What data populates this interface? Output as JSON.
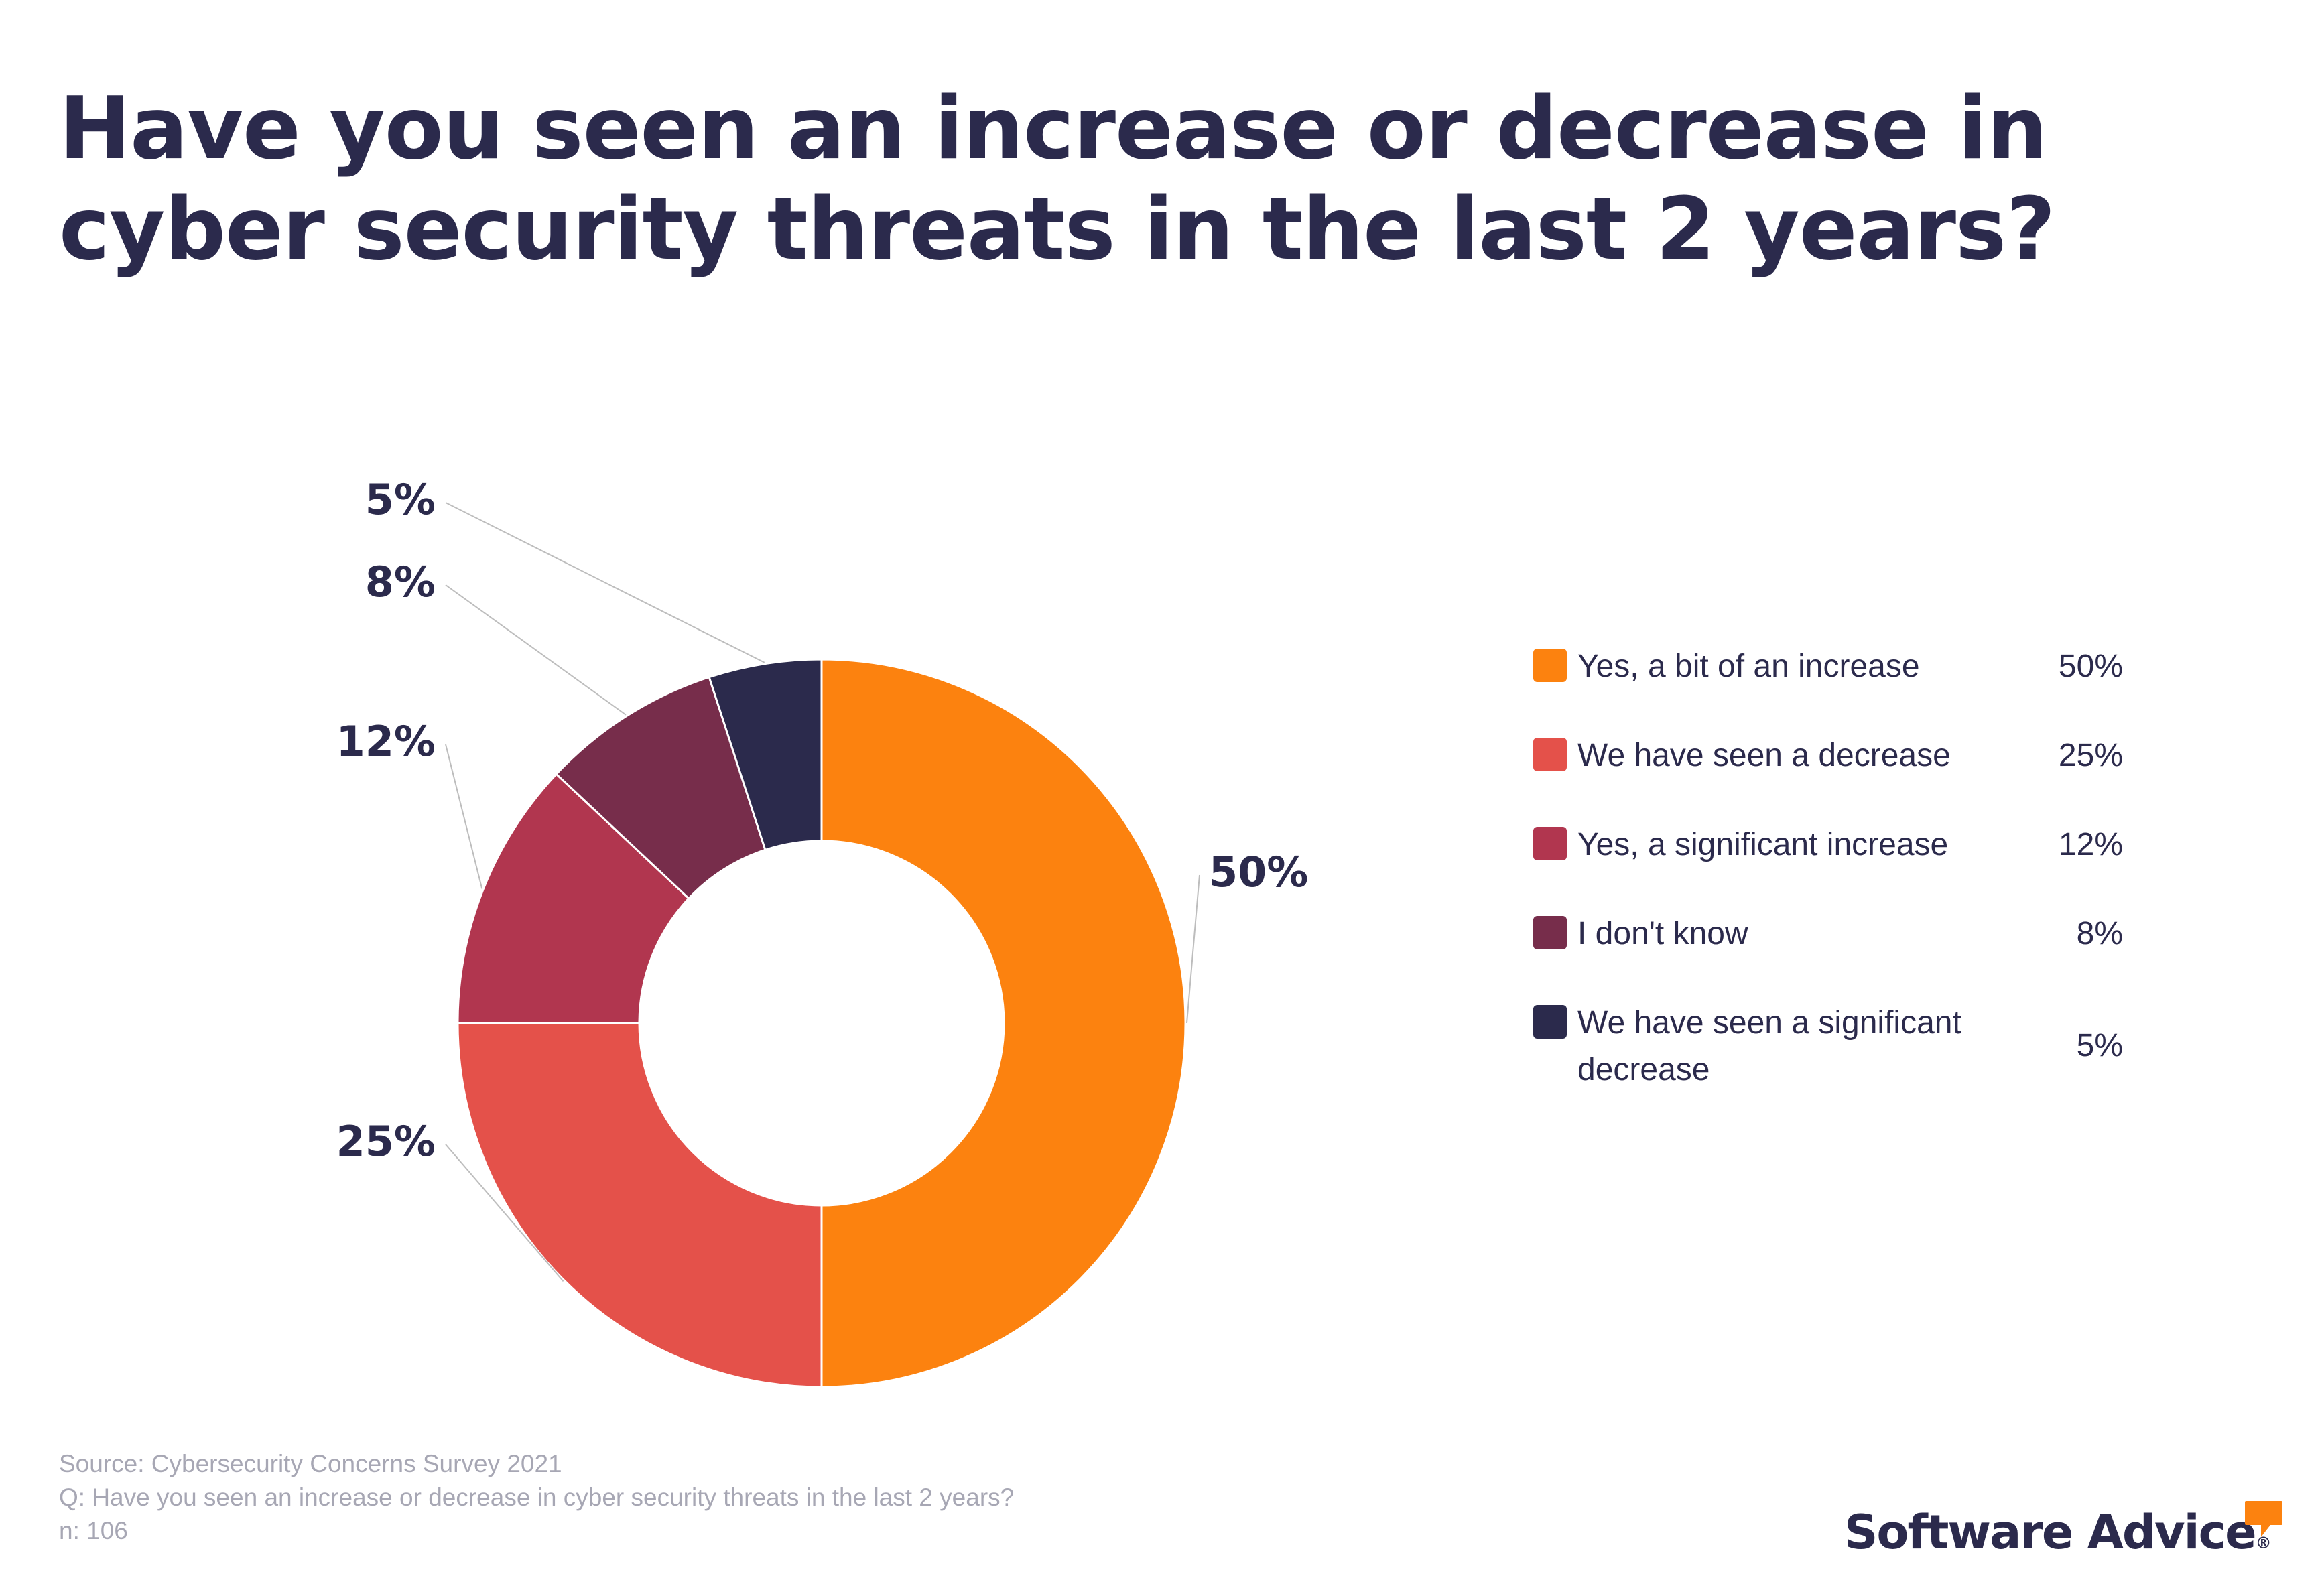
{
  "title_lines": [
    "Have you seen an increase or decrease in",
    "cyber security threats in the last 2 years?"
  ],
  "chart_data": {
    "type": "pie",
    "donut": true,
    "title": "Have you seen an increase or decrease in cyber security threats in the last 2 years?",
    "legend_position": "right",
    "categories": [
      "Yes, a bit of an increase",
      "We have seen a decrease",
      "Yes, a significant increase",
      "I don't know",
      "We have seen a significant decrease"
    ],
    "values": [
      50,
      25,
      12,
      8,
      5
    ],
    "value_labels": [
      "50%",
      "25%",
      "12%",
      "8%",
      "5%"
    ],
    "colors": [
      "#fc820f",
      "#e4514a",
      "#b1364f",
      "#772d4b",
      "#2b2a4c"
    ]
  },
  "legend": {
    "items": [
      {
        "label": "Yes, a bit of an increase",
        "value": "50%",
        "color": "#fc820f"
      },
      {
        "label": "We have seen a decrease",
        "value": "25%",
        "color": "#e4514a"
      },
      {
        "label": "Yes, a significant increase",
        "value": "12%",
        "color": "#b1364f"
      },
      {
        "label": "I don't know",
        "value": "8%",
        "color": "#772d4b"
      },
      {
        "label": "We have seen a significant decrease",
        "value": "5%",
        "color": "#2b2a4c"
      }
    ]
  },
  "footer": {
    "source": "Source: Cybersecurity Concerns Survey 2021",
    "question": "Q: Have you seen an increase or decrease in cyber security threats in the last 2 years?",
    "n": "n: 106"
  },
  "brand": {
    "name": "Software Advice",
    "registered": "®",
    "accent": "#fc820f",
    "icon": "speech-bubble-icon"
  }
}
